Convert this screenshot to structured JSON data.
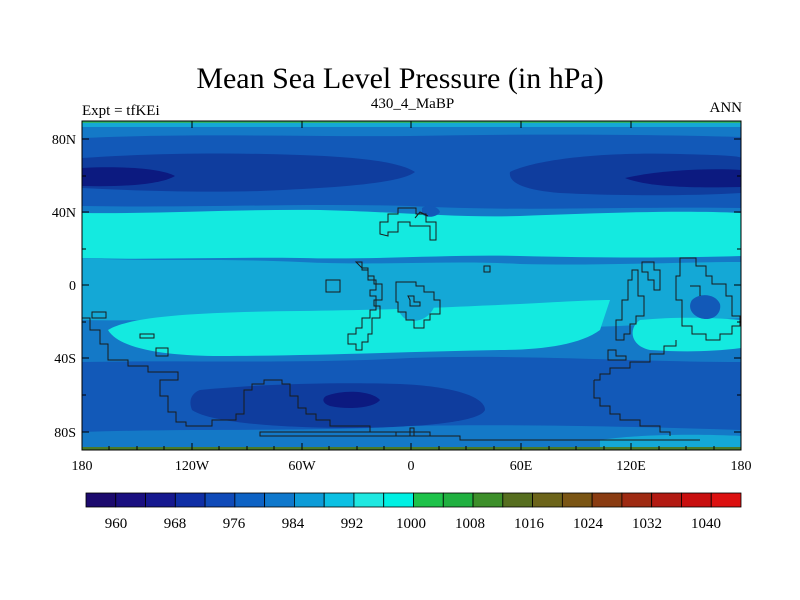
{
  "title": "Mean Sea Level Pressure (in hPa)",
  "left_string": "Expt = tfKEi",
  "center_string": "430_4_MaBP",
  "right_string": "ANN",
  "y_ticks": [
    "80N",
    "40N",
    "0",
    "40S",
    "80S"
  ],
  "x_ticks": [
    "180",
    "120W",
    "60W",
    "0",
    "60E",
    "120E",
    "180"
  ],
  "colorbar": {
    "labels": [
      "960",
      "968",
      "976",
      "984",
      "992",
      "1000",
      "1008",
      "1016",
      "1024",
      "1032",
      "1040"
    ],
    "colors": [
      "#1c0a6e",
      "#1a0f80",
      "#16188f",
      "#0f2ea5",
      "#0f4ab8",
      "#0d62c4",
      "#0f78cc",
      "#0d9cd8",
      "#0cc0e3",
      "#1fe8e1",
      "#00f0e3",
      "#1ec24a",
      "#20b040",
      "#3d8f2a",
      "#566e1f",
      "#6c641a",
      "#7a5514",
      "#8a3c12",
      "#9e2a12",
      "#b21a12",
      "#c80f0f",
      "#dc1010"
    ]
  },
  "map_colors": {
    "level_955": "#0c1a80",
    "level_965": "#0f3d9e",
    "level_975": "#1259b8",
    "level_985": "#1479c7",
    "level_995": "#14a8d6",
    "level_1000": "#14eae0",
    "coast": "#1a1a1a"
  }
}
